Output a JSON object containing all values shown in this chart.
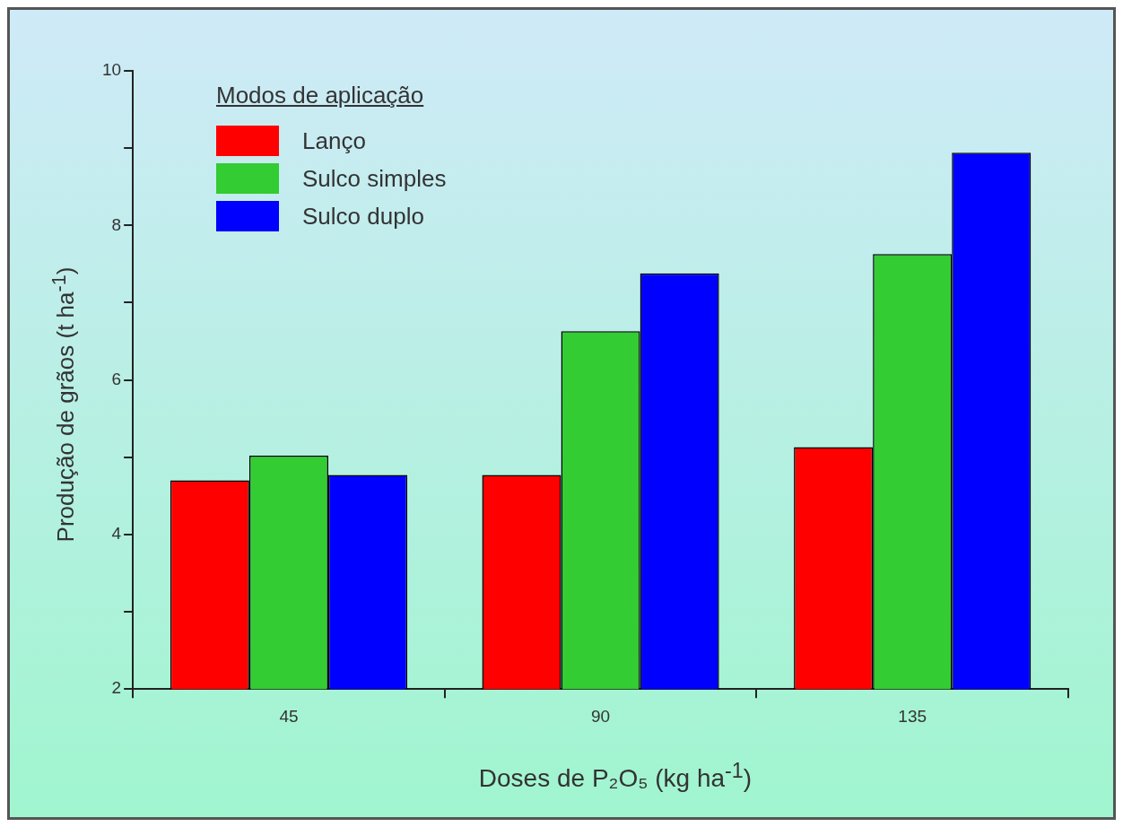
{
  "chart_data": {
    "type": "bar",
    "xlabel": "Doses de P₂O₅ (kg ha$^{-1}$)",
    "ylabel": "Produção de grãos (t ha$^{-1}$)",
    "legend_title": "Modos de aplicação",
    "legend": "top left",
    "categories": [
      "45",
      "90",
      "135"
    ],
    "series": [
      {
        "name": "Lanço",
        "color": "#ff0000",
        "values": [
          4.7,
          4.77,
          5.13
        ]
      },
      {
        "name": "Sulco simples",
        "color": "#33cc33",
        "values": [
          5.02,
          6.63,
          7.63
        ]
      },
      {
        "name": "Sulco duplo",
        "color": "#0000ff",
        "values": [
          4.77,
          7.38,
          8.94
        ]
      }
    ],
    "ylim": [
      2,
      10
    ],
    "yticks": [
      2,
      {
        "value": 3,
        "label": null
      },
      4,
      {
        "value": 5,
        "label": null
      },
      6,
      {
        "value": 7,
        "label": null
      },
      8,
      {
        "value": 9,
        "label": null
      },
      10
    ]
  }
}
